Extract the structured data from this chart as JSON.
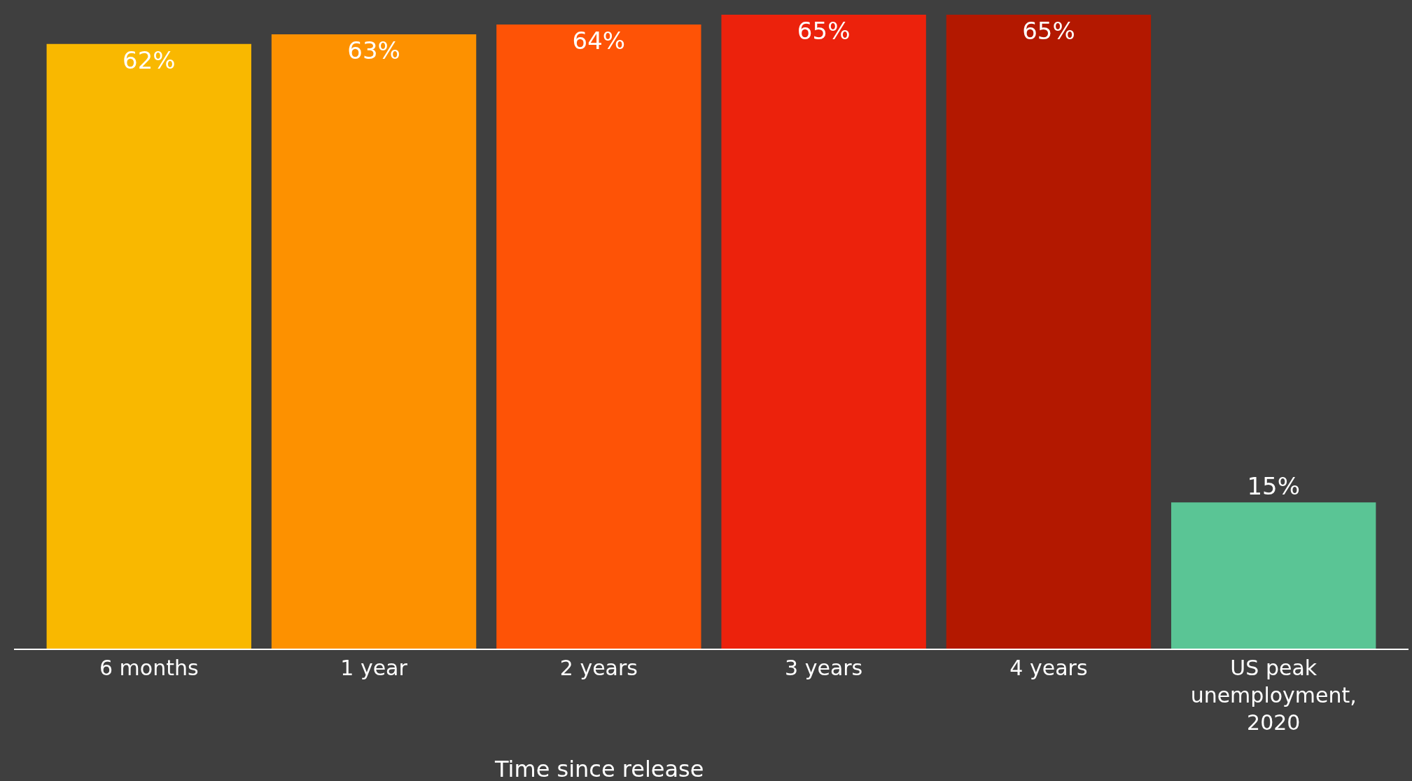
{
  "chart_data": {
    "type": "bar",
    "xlabel": "Time since release",
    "categories": [
      "6 months",
      "1 year",
      "2 years",
      "3 years",
      "4 years",
      "US peak unemployment, 2020"
    ],
    "values": [
      62,
      63,
      64,
      65,
      65,
      15
    ],
    "value_labels": [
      "62%",
      "63%",
      "64%",
      "65%",
      "65%",
      "15%"
    ],
    "colors": [
      "#f9b800",
      "#fd9100",
      "#fe5306",
      "#ec220c",
      "#b31800",
      "#5ac595"
    ],
    "grid": false
  }
}
